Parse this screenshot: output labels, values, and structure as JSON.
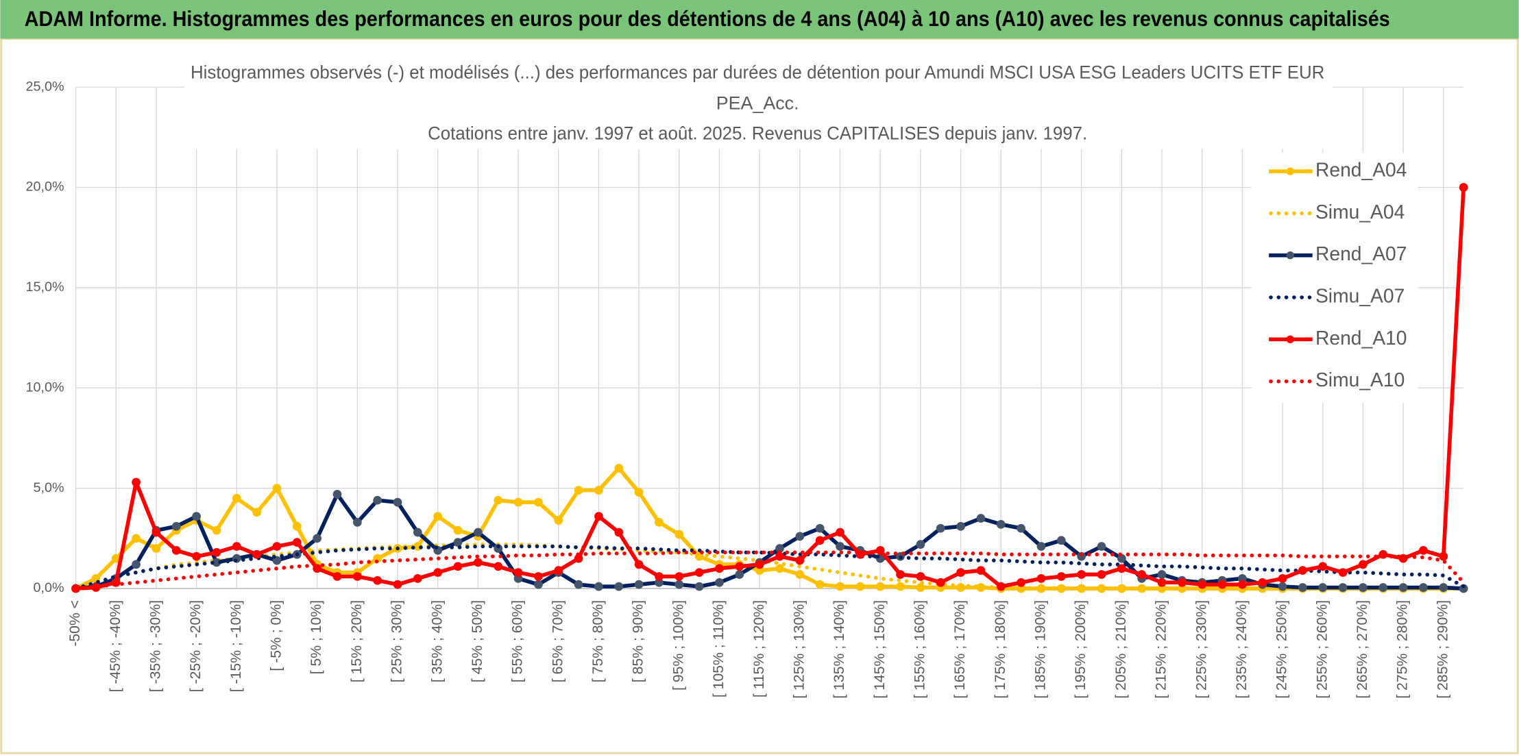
{
  "header": {
    "title": "ADAM Informe. Histogrammes des performances en euros pour des détentions de 4 ans (A04) à 10 ans (A10) avec les revenus connus capitalisés"
  },
  "chart_data": {
    "type": "line",
    "title": [
      "Histogrammes observés (-) et modélisés (...) des performances par durées de détention pour Amundi MSCI USA ESG Leaders UCITS ETF EUR",
      "PEA_Acc.",
      "Cotations entre janv. 1997 et août. 2025. Revenus CAPITALISES depuis janv. 1997."
    ],
    "categories": [
      "-50% <",
      null,
      "[ -45% ; -40%]",
      null,
      "[ -35% ; -30%]",
      null,
      "[ -25% ; -20%]",
      null,
      "[ -15% ; -10%]",
      null,
      "[ -5% ; 0%]",
      null,
      "[ 5% ; 10%]",
      null,
      "[ 15% ; 20%]",
      null,
      "[ 25% ; 30%]",
      null,
      "[ 35% ; 40%]",
      null,
      "[ 45% ; 50%]",
      null,
      "[ 55% ; 60%]",
      null,
      "[ 65% ; 70%]",
      null,
      "[ 75% ; 80%]",
      null,
      "[ 85% ; 90%]",
      null,
      "[ 95% ; 100%]",
      null,
      "[ 105% ; 110%]",
      null,
      "[ 115% ; 120%]",
      null,
      "[ 125% ; 130%]",
      null,
      "[ 135% ; 140%]",
      null,
      "[ 145% ; 150%]",
      null,
      "[ 155% ; 160%]",
      null,
      "[ 165% ; 170%]",
      null,
      "[ 175% ; 180%]",
      null,
      "[ 185% ; 190%]",
      null,
      "[ 195% ; 200%]",
      null,
      "[ 205% ; 210%]",
      null,
      "[ 215% ; 220%]",
      null,
      "[ 225% ; 230%]",
      null,
      "[ 235% ; 240%]",
      null,
      "[ 245% ; 250%]",
      null,
      "[ 255% ; 260%]",
      null,
      "[ 265% ; 270%]",
      null,
      "[ 275% ; 280%]",
      null,
      "[ 285% ; 290%]",
      null
    ],
    "series": [
      {
        "name": "Rend_A04",
        "color": "#ffc000",
        "style": "solid",
        "markers": true,
        "values": [
          0,
          0.5,
          1.5,
          2.5,
          2.0,
          2.9,
          3.4,
          2.9,
          4.5,
          3.8,
          5.0,
          3.1,
          1.2,
          0.8,
          0.8,
          1.5,
          2.0,
          2.1,
          3.6,
          2.9,
          2.6,
          4.4,
          4.3,
          4.3,
          3.4,
          4.9,
          4.9,
          6.0,
          4.8,
          3.3,
          2.7,
          1.6,
          1.2,
          1.2,
          0.9,
          1.0,
          0.7,
          0.2,
          0.1,
          0.1,
          0.1,
          0.1,
          0.05,
          0.05,
          0.05,
          0.05,
          0,
          0,
          0,
          0,
          0,
          0,
          0,
          0,
          0,
          0,
          0,
          0,
          0,
          0,
          0,
          0,
          0,
          0,
          0,
          0,
          0,
          0,
          0,
          0
        ]
      },
      {
        "name": "Simu_A04",
        "color": "#ffc000",
        "style": "dotted",
        "markers": false,
        "values": [
          0,
          0.3,
          0.6,
          0.8,
          1.0,
          1.2,
          1.3,
          1.4,
          1.5,
          1.6,
          1.7,
          1.8,
          1.9,
          1.95,
          2.0,
          2.05,
          2.1,
          2.1,
          2.15,
          2.15,
          2.2,
          2.2,
          2.2,
          2.15,
          2.1,
          2.05,
          2.0,
          1.95,
          1.9,
          1.85,
          1.8,
          1.7,
          1.6,
          1.5,
          1.4,
          1.25,
          1.1,
          0.95,
          0.8,
          0.65,
          0.5,
          0.4,
          0.3,
          0.2,
          0.15,
          0.1,
          0.05,
          0.02,
          0.02,
          0.02,
          0.01,
          0.01,
          0.01,
          0.01,
          0.01,
          0,
          0,
          0,
          0,
          0,
          0,
          0,
          0,
          0,
          0,
          0,
          0,
          0,
          0,
          0
        ]
      },
      {
        "name": "Rend_A07",
        "color": "#002060",
        "style": "solid",
        "markers": true,
        "marker_color": "#44546a",
        "values": [
          0,
          0.1,
          0.5,
          1.2,
          2.9,
          3.1,
          3.6,
          1.3,
          1.5,
          1.7,
          1.4,
          1.7,
          2.5,
          4.7,
          3.3,
          4.4,
          4.3,
          2.8,
          1.9,
          2.3,
          2.8,
          2.0,
          0.5,
          0.2,
          0.8,
          0.2,
          0.1,
          0.1,
          0.2,
          0.3,
          0.2,
          0.1,
          0.3,
          0.7,
          1.3,
          2.0,
          2.6,
          3.0,
          2.1,
          1.9,
          1.5,
          1.6,
          2.2,
          3.0,
          3.1,
          3.5,
          3.2,
          3.0,
          2.1,
          2.4,
          1.6,
          2.1,
          1.5,
          0.5,
          0.7,
          0.4,
          0.3,
          0.4,
          0.5,
          0.2,
          0.1,
          0.05,
          0.05,
          0.05,
          0.05,
          0.05,
          0.05,
          0.05,
          0.05,
          0
        ]
      },
      {
        "name": "Simu_A07",
        "color": "#002060",
        "style": "dotted",
        "markers": false,
        "values": [
          0,
          0.3,
          0.6,
          0.8,
          1.0,
          1.1,
          1.2,
          1.3,
          1.4,
          1.5,
          1.6,
          1.7,
          1.8,
          1.9,
          1.95,
          2.0,
          2.0,
          2.05,
          2.05,
          2.05,
          2.1,
          2.1,
          2.1,
          2.1,
          2.1,
          2.05,
          2.05,
          2.0,
          2.0,
          1.95,
          1.9,
          1.9,
          1.85,
          1.8,
          1.8,
          1.75,
          1.7,
          1.7,
          1.65,
          1.6,
          1.6,
          1.55,
          1.5,
          1.5,
          1.45,
          1.4,
          1.4,
          1.35,
          1.3,
          1.3,
          1.25,
          1.2,
          1.2,
          1.15,
          1.1,
          1.1,
          1.05,
          1.0,
          1.0,
          0.95,
          0.9,
          0.9,
          0.85,
          0.8,
          0.8,
          0.75,
          0.7,
          0.7,
          0.65,
          0.1
        ]
      },
      {
        "name": "Rend_A10",
        "color": "#ff0000",
        "style": "solid",
        "markers": true,
        "values": [
          0,
          0.05,
          0.3,
          5.3,
          2.8,
          1.9,
          1.6,
          1.8,
          2.1,
          1.7,
          2.1,
          2.3,
          1.0,
          0.6,
          0.6,
          0.4,
          0.2,
          0.5,
          0.8,
          1.1,
          1.3,
          1.1,
          0.8,
          0.6,
          0.9,
          1.5,
          3.6,
          2.8,
          1.2,
          0.6,
          0.6,
          0.8,
          1.0,
          1.1,
          1.2,
          1.6,
          1.4,
          2.4,
          2.8,
          1.7,
          1.9,
          0.7,
          0.6,
          0.3,
          0.8,
          0.9,
          0.1,
          0.3,
          0.5,
          0.6,
          0.7,
          0.7,
          1.0,
          0.7,
          0.3,
          0.3,
          0.2,
          0.2,
          0.2,
          0.3,
          0.5,
          0.9,
          1.1,
          0.8,
          1.2,
          1.7,
          1.5,
          1.9,
          1.6,
          20.0
        ]
      },
      {
        "name": "Simu_A10",
        "color": "#ff0000",
        "style": "dotted",
        "markers": false,
        "values": [
          0,
          0.1,
          0.2,
          0.3,
          0.4,
          0.5,
          0.6,
          0.7,
          0.8,
          0.9,
          1.0,
          1.1,
          1.15,
          1.2,
          1.3,
          1.35,
          1.4,
          1.45,
          1.5,
          1.55,
          1.6,
          1.6,
          1.65,
          1.65,
          1.7,
          1.7,
          1.75,
          1.75,
          1.75,
          1.75,
          1.8,
          1.8,
          1.8,
          1.8,
          1.8,
          1.8,
          1.8,
          1.8,
          1.8,
          1.8,
          1.75,
          1.75,
          1.75,
          1.75,
          1.75,
          1.75,
          1.7,
          1.7,
          1.7,
          1.7,
          1.7,
          1.7,
          1.7,
          1.7,
          1.7,
          1.7,
          1.65,
          1.65,
          1.65,
          1.65,
          1.65,
          1.6,
          1.6,
          1.6,
          1.6,
          1.6,
          1.6,
          1.55,
          1.4,
          0.3
        ]
      }
    ],
    "ylim": [
      0,
      25
    ],
    "yticks": [
      {
        "value": 0,
        "label": "0,0%"
      },
      {
        "value": 5,
        "label": "5,0%"
      },
      {
        "value": 10,
        "label": "10,0%"
      },
      {
        "value": 15,
        "label": "15,0%"
      },
      {
        "value": 20,
        "label": "20,0%"
      },
      {
        "value": 25,
        "label": "25,0%"
      }
    ],
    "grid": true,
    "legend": "upper right"
  }
}
